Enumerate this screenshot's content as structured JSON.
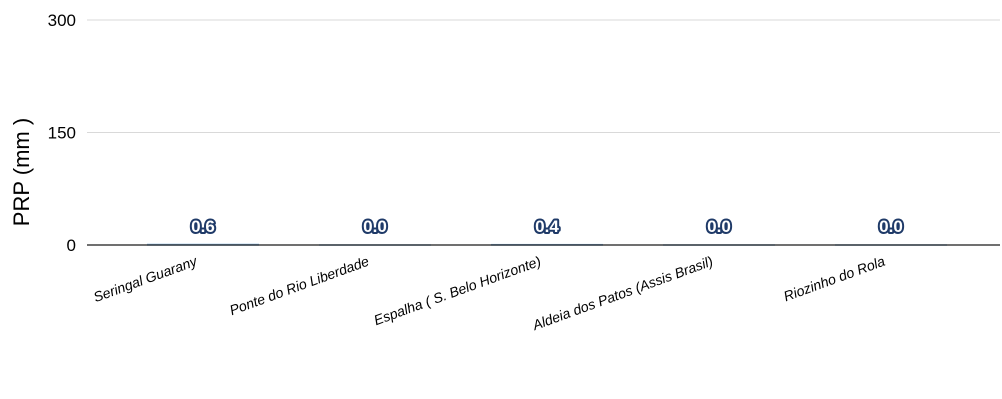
{
  "chart_data": {
    "type": "bar",
    "title": "",
    "xlabel": "",
    "ylabel": "PRP (mm )",
    "ylim": [
      0,
      300
    ],
    "yticks": [
      0,
      150,
      300
    ],
    "grid": true,
    "categories": [
      "Seringal Guarany",
      "Ponte do Rio Liberdade",
      "Espalha ( S. Belo Horizonte)",
      "Aldeia dos Patos (Assis Brasil)",
      "Riozinho do Rola"
    ],
    "values": [
      0.6,
      0.0,
      0.4,
      0.0,
      0.0
    ],
    "data_labels": [
      "0.6",
      "0.0",
      "0.4",
      "0.0",
      "0.0"
    ],
    "bar_color": "#5b9bd5",
    "grid_color": "#d9d9d9",
    "axis_color": "#404040"
  }
}
